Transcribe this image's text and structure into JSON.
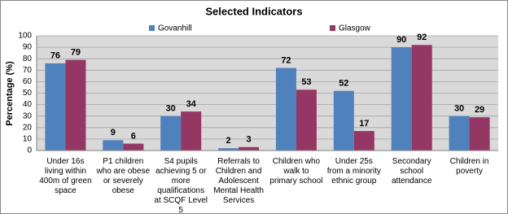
{
  "chart_data": {
    "type": "bar",
    "title": "Selected Indicators",
    "y_label": "Percentage (%)",
    "categories": [
      "Under 16s living within 400m of green space",
      "P1 children who are obese or severely obese",
      "S4 pupils achieving 5 or more qualifications at SCQF Level 5",
      "Referrals to Children and Adolescent Mental Health Services",
      "Children who walk to primary school",
      "Under 25s from a minority ethnic group",
      "Secondary school attendance",
      "Children in poverty"
    ],
    "series": [
      {
        "name": "Govanhill",
        "color": "#4f81bd",
        "values": [
          76,
          9,
          30,
          2,
          72,
          52,
          90,
          30
        ]
      },
      {
        "name": "Glasgow",
        "color": "#953765",
        "values": [
          79,
          6,
          34,
          3,
          53,
          17,
          92,
          29
        ]
      }
    ],
    "ylim": [
      0,
      100
    ],
    "yticks": [
      0,
      10,
      20,
      30,
      40,
      50,
      60,
      70,
      80,
      90,
      100
    ],
    "grid": true,
    "legend": "top"
  }
}
